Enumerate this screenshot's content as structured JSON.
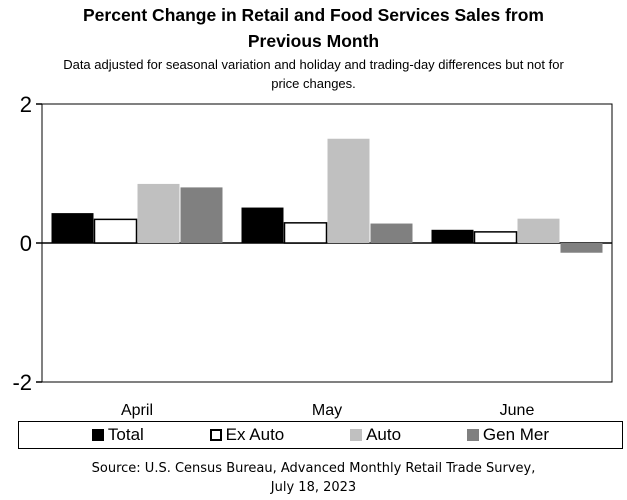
{
  "chart_data": {
    "type": "bar",
    "title_line1": "Percent Change in Retail and Food Services Sales from",
    "title_line2": "Previous Month",
    "subtitle_line1": "Data adjusted for seasonal variation and holiday and trading-day differences but not for",
    "subtitle_line2": "price changes.",
    "categories": [
      "April",
      "May",
      "June"
    ],
    "series": [
      {
        "name": "Total",
        "values": [
          0.43,
          0.51,
          0.19
        ],
        "color": "#000000"
      },
      {
        "name": "Ex Auto",
        "values": [
          0.34,
          0.29,
          0.16
        ],
        "color": "#ffffff"
      },
      {
        "name": "Auto",
        "values": [
          0.85,
          1.5,
          0.35
        ],
        "color": "#c0c0c0"
      },
      {
        "name": "Gen Mer",
        "values": [
          0.8,
          0.28,
          -0.14
        ],
        "color": "#808080"
      }
    ],
    "ylim": [
      -2,
      2
    ],
    "yticks": [
      "2",
      "0",
      "-2"
    ],
    "ytick_values": [
      2,
      0,
      -2
    ],
    "source_line1": "Source: U.S. Census Bureau, Advanced Monthly Retail Trade Survey,",
    "source_line2": "July 18, 2023"
  }
}
